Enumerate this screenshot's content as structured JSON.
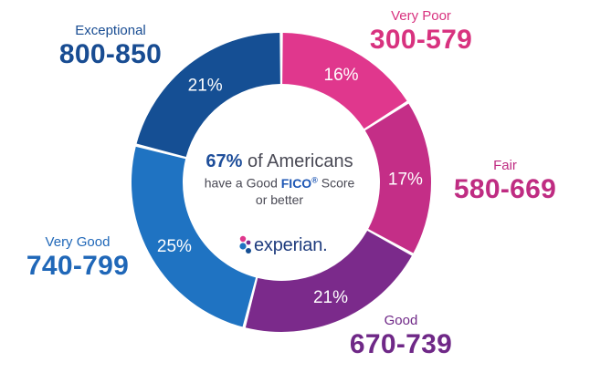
{
  "chart_data": {
    "type": "pie",
    "variant": "donut",
    "categories": [
      {
        "name": "Very Poor",
        "range": "300-579",
        "value": 16,
        "value_label": "16%",
        "color": "#e0378d"
      },
      {
        "name": "Fair",
        "range": "580-669",
        "value": 17,
        "value_label": "17%",
        "color": "#c42e87"
      },
      {
        "name": "Good",
        "range": "670-739",
        "value": 21,
        "value_label": "21%",
        "color": "#7b2a8b"
      },
      {
        "name": "Very Good",
        "range": "740-799",
        "value": 25,
        "value_label": "25%",
        "color": "#1f73c2"
      },
      {
        "name": "Exceptional",
        "range": "800-850",
        "value": 21,
        "value_label": "21%",
        "color": "#154f94"
      }
    ],
    "start": "top, clockwise"
  },
  "center": {
    "percent": "67%",
    "line1_rest": " of Americans",
    "line2_before": "have a Good ",
    "brand_word": "FICO",
    "brand_mark": "®",
    "line2_after": " Score",
    "line3": "or better"
  },
  "logo": {
    "word": "experian.",
    "colors": [
      "#e0378d",
      "#7b2a8b",
      "#1f73c2",
      "#154f94"
    ]
  }
}
